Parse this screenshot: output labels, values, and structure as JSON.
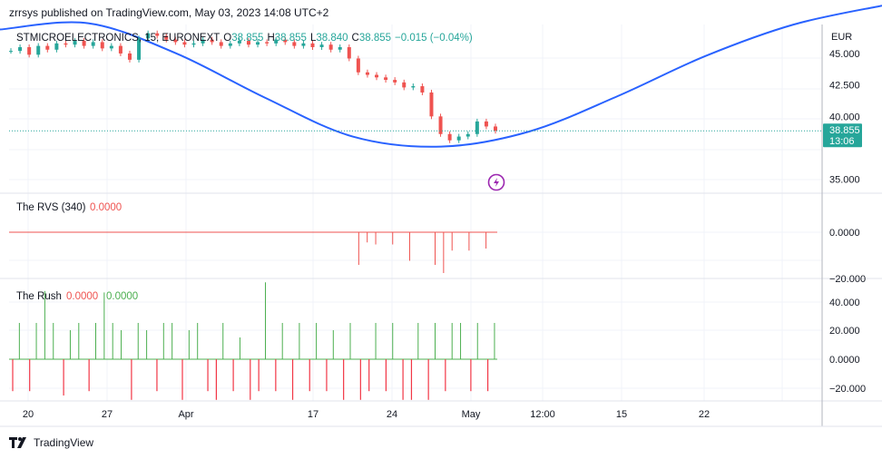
{
  "header": {
    "publish_line": "zrrsys published on TradingView.com, May 03, 2023 14:08 UTC+2"
  },
  "symbol_legend": {
    "name": "STMICROELECTRONICS, 15, EURONEXT",
    "o_label": "O",
    "o_value": "38.855",
    "h_label": "H",
    "h_value": "38.855",
    "l_label": "L",
    "l_value": "38.840",
    "c_label": "C",
    "c_value": "38.855",
    "change": "−0.015 (−0.04%)"
  },
  "currency": "EUR",
  "last_price": {
    "value": "38.855",
    "countdown": "13:06"
  },
  "indicators": {
    "rvs": {
      "name": "The RVS (340)",
      "value": "0.0000"
    },
    "rush": {
      "name": "The Rush",
      "value_red": "0.0000",
      "value_green": "0.0000"
    }
  },
  "colors": {
    "up": "#26a69a",
    "down": "#ef5350",
    "curve": "#2962ff",
    "rvs_line": "#ef5350",
    "rush_up": "#4caf50",
    "rush_down": "#f23645",
    "grid": "#f0f3fa",
    "text": "#131722",
    "axis_text": "#131722",
    "price_tag": "#26a69a",
    "icon": "#9c27b0"
  },
  "chart_data": [
    {
      "type": "line",
      "title": "STMICROELECTRONICS, 15, EURONEXT",
      "y_axis": {
        "ticks": [
          "45.000",
          "42.500",
          "40.000",
          "35.000"
        ],
        "ylim": [
          33.9,
          47.3
        ],
        "unit": "EUR"
      },
      "x_axis": {
        "ticks": [
          "20",
          "27",
          "Apr",
          "17",
          "24",
          "May",
          "12:00",
          "15",
          "22"
        ]
      },
      "series": [
        {
          "name": "price",
          "x": [
            0,
            1,
            2,
            3,
            4,
            5,
            6,
            7,
            8,
            9,
            10,
            11,
            12,
            13,
            14,
            15,
            16,
            17,
            18,
            19,
            20,
            21,
            22,
            23,
            24,
            25,
            26,
            27,
            28,
            29,
            30,
            31,
            32,
            33,
            34,
            35,
            36,
            37,
            38,
            39,
            40,
            41,
            42,
            43,
            44,
            45,
            46,
            47,
            48,
            49,
            50,
            51,
            52,
            53
          ],
          "values": [
            45.2,
            45.5,
            44.9,
            45.6,
            45.3,
            45.8,
            45.7,
            46.0,
            45.6,
            45.9,
            45.4,
            45.6,
            45.0,
            44.5,
            46.2,
            46.6,
            46.4,
            46.1,
            45.9,
            45.7,
            45.8,
            46.1,
            45.9,
            45.6,
            45.8,
            46.0,
            45.7,
            45.9,
            45.8,
            46.1,
            45.9,
            45.6,
            45.8,
            45.5,
            45.7,
            45.3,
            45.5,
            44.6,
            43.5,
            43.3,
            43.1,
            42.9,
            42.7,
            42.3,
            42.4,
            41.9,
            40.0,
            38.6,
            38.1,
            38.4,
            38.6,
            39.6,
            39.2,
            38.855
          ]
        },
        {
          "name": "curve",
          "x": [
            0,
            10,
            20,
            30,
            40,
            50,
            60,
            70,
            80,
            90,
            100
          ],
          "values": [
            46.9,
            47.4,
            45.0,
            41.5,
            38.4,
            37.6,
            38.8,
            41.6,
            44.8,
            47.3,
            48.8
          ]
        }
      ]
    },
    {
      "type": "bar",
      "title": "The RVS (340)",
      "y_axis": {
        "ticks": [
          "0.0000",
          "−20.000"
        ]
      },
      "baseline": 0,
      "bars": [
        {
          "x": 41,
          "value": -16
        },
        {
          "x": 42,
          "value": -5
        },
        {
          "x": 43,
          "value": -6
        },
        {
          "x": 45,
          "value": -6
        },
        {
          "x": 47,
          "value": -14
        },
        {
          "x": 50,
          "value": -16
        },
        {
          "x": 51,
          "value": -20
        },
        {
          "x": 52,
          "value": -9
        },
        {
          "x": 54,
          "value": -9
        },
        {
          "x": 56,
          "value": -8
        }
      ]
    },
    {
      "type": "bar",
      "title": "The Rush",
      "y_axis": {
        "ticks": [
          "40.000",
          "20.000",
          "0.0000",
          "−20.000"
        ]
      },
      "up_bars": [
        {
          "x": 1,
          "value": 25
        },
        {
          "x": 3,
          "value": 25
        },
        {
          "x": 4,
          "value": 47
        },
        {
          "x": 5,
          "value": 25
        },
        {
          "x": 7,
          "value": 20
        },
        {
          "x": 8,
          "value": 25
        },
        {
          "x": 10,
          "value": 25
        },
        {
          "x": 11,
          "value": 46
        },
        {
          "x": 12,
          "value": 25
        },
        {
          "x": 13,
          "value": 20
        },
        {
          "x": 15,
          "value": 25
        },
        {
          "x": 16,
          "value": 20
        },
        {
          "x": 18,
          "value": 25
        },
        {
          "x": 19,
          "value": 25
        },
        {
          "x": 21,
          "value": 20
        },
        {
          "x": 22,
          "value": 25
        },
        {
          "x": 25,
          "value": 25
        },
        {
          "x": 27,
          "value": 15
        },
        {
          "x": 30,
          "value": 53
        },
        {
          "x": 32,
          "value": 25
        },
        {
          "x": 34,
          "value": 25
        },
        {
          "x": 36,
          "value": 25
        },
        {
          "x": 38,
          "value": 20
        },
        {
          "x": 40,
          "value": 25
        },
        {
          "x": 43,
          "value": 25
        },
        {
          "x": 45,
          "value": 25
        },
        {
          "x": 48,
          "value": 25
        },
        {
          "x": 50,
          "value": 25
        },
        {
          "x": 52,
          "value": 25
        },
        {
          "x": 53,
          "value": 25
        },
        {
          "x": 55,
          "value": 25
        },
        {
          "x": 57,
          "value": 25
        }
      ],
      "down_bars": [
        {
          "x": 0,
          "value": -22
        },
        {
          "x": 2,
          "value": -22
        },
        {
          "x": 6,
          "value": -25
        },
        {
          "x": 9,
          "value": -22
        },
        {
          "x": 14,
          "value": -28
        },
        {
          "x": 17,
          "value": -22
        },
        {
          "x": 20,
          "value": -28
        },
        {
          "x": 23,
          "value": -22
        },
        {
          "x": 24,
          "value": -28
        },
        {
          "x": 26,
          "value": -22
        },
        {
          "x": 28,
          "value": -28
        },
        {
          "x": 29,
          "value": -22
        },
        {
          "x": 31,
          "value": -22
        },
        {
          "x": 33,
          "value": -28
        },
        {
          "x": 35,
          "value": -22
        },
        {
          "x": 37,
          "value": -22
        },
        {
          "x": 39,
          "value": -28
        },
        {
          "x": 41,
          "value": -28
        },
        {
          "x": 42,
          "value": -22
        },
        {
          "x": 44,
          "value": -22
        },
        {
          "x": 46,
          "value": -28
        },
        {
          "x": 47,
          "value": -28
        },
        {
          "x": 49,
          "value": -28
        },
        {
          "x": 51,
          "value": -22
        },
        {
          "x": 54,
          "value": -22
        },
        {
          "x": 56,
          "value": -22
        }
      ]
    }
  ],
  "footer": {
    "brand": "TradingView"
  }
}
